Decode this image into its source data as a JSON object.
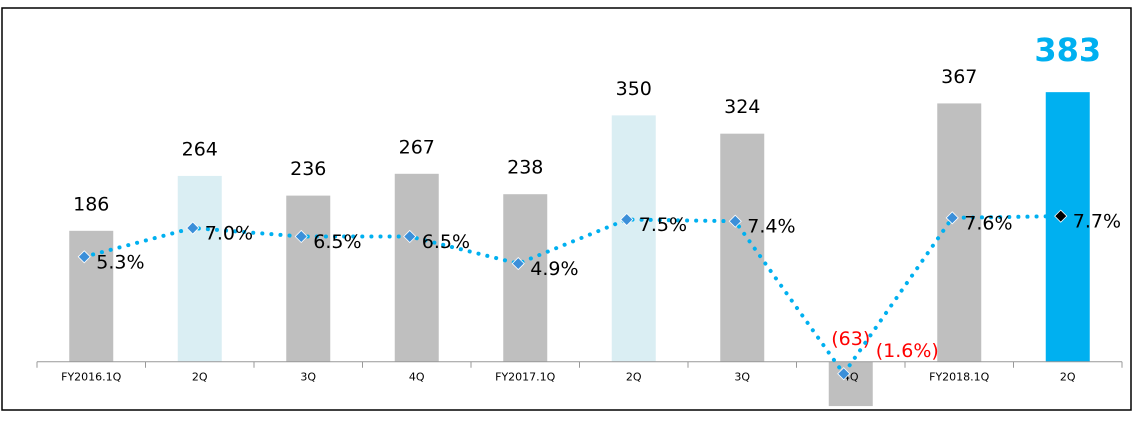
{
  "chart_data": {
    "type": "bar_line",
    "categories": [
      "FY2016.1Q",
      "2Q",
      "3Q",
      "4Q",
      "FY2017.1Q",
      "2Q",
      "3Q",
      "4Q",
      "FY2018.1Q",
      "2Q"
    ],
    "ylim": [
      -70,
      450
    ],
    "y2lim": [
      -3.8,
      17.8
    ],
    "series": [
      {
        "name": "bars",
        "values": [
          186,
          264,
          236,
          267,
          238,
          350,
          324,
          -63,
          367,
          383
        ],
        "value_labels": [
          "186",
          "264",
          "236",
          "267",
          "238",
          "350",
          "324",
          "(63)",
          "367",
          "383"
        ],
        "colors": [
          "#bfbfbf",
          "#daeef3",
          "#bfbfbf",
          "#bfbfbf",
          "#bfbfbf",
          "#daeef3",
          "#bfbfbf",
          "#bfbfbf",
          "#bfbfbf",
          "#00b0f0"
        ],
        "label_colors": [
          "#000000",
          "#000000",
          "#000000",
          "#000000",
          "#000000",
          "#000000",
          "#000000",
          "#ff0000",
          "#000000",
          "#00b0f0"
        ]
      },
      {
        "name": "ratio",
        "axis": "y2",
        "color": "#00b0f0",
        "values": [
          5.3,
          7.0,
          6.5,
          6.5,
          4.9,
          7.5,
          7.4,
          -1.6,
          7.6,
          7.7
        ],
        "value_labels": [
          "5.3%",
          "7.0%",
          "6.5%",
          "6.5%",
          "4.9%",
          "7.5%",
          "7.4%",
          "(1.6%)",
          "7.6%",
          "7.7%"
        ],
        "marker_colors": [
          "#3b8fd9",
          "#3b8fd9",
          "#3b8fd9",
          "#3b8fd9",
          "#3b8fd9",
          "#3b8fd9",
          "#3b8fd9",
          "#3b8fd9",
          "#3b8fd9",
          "#000000"
        ],
        "label_colors": [
          "#000000",
          "#000000",
          "#000000",
          "#000000",
          "#000000",
          "#000000",
          "#000000",
          "#ff0000",
          "#000000",
          "#000000"
        ]
      }
    ]
  }
}
